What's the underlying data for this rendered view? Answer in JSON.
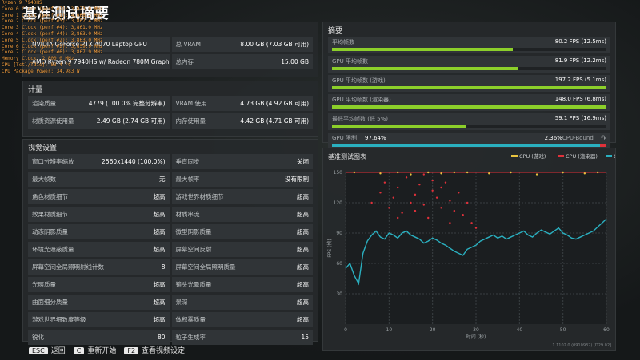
{
  "title": "基准测试摘要",
  "osd": [
    "Ryzen 9 7940HS",
    "Core 0 Clock (perf #7): 3,873.0 MHz",
    "Core 1 Clock (perf #1): 4,066.2 MHz",
    "Core 2 Clock (perf #3): 3,867.4 MHz",
    "Core 3 Clock (perf #4): 3,861.0 MHz",
    "Core 4 Clock (perf #4): 3,863.0 MHz",
    "Core 5 Clock (perf #2): 3,863.0 MHz",
    "Core 6 Clock (perf #2): 3,859.9 MHz",
    "Core 7 Clock (perf #6): 3,867.9 MHz",
    "Memory Clock: 2,800.0 MHz",
    "CPU [Tctl/Tdie]: 83.4 °C",
    "CPU Package Power: 34.983 W"
  ],
  "system": {
    "rows": [
      [
        "NVIDIA GeForce RTX 4070 Laptop GPU",
        "总 VRAM",
        "8.00 GB (7.03 GB 可用)"
      ],
      [
        "AMD Ryzen 9 7940HS w/ Radeon 780M Graphics",
        "总内存",
        "15.00 GB"
      ]
    ]
  },
  "metrics": {
    "title": "计量",
    "rows": [
      [
        "渲染质量",
        "4779 (100.0% 完整分辨率)",
        "VRAM 使用",
        "4.73 GB (4.92 GB 可用)"
      ],
      [
        "材质资源使用量",
        "2.49 GB (2.74 GB 可用)",
        "内存使用量",
        "4.42 GB (4.71 GB 可用)"
      ]
    ]
  },
  "settings": {
    "title": "视觉设置",
    "rows": [
      [
        "窗口分辨率缩放",
        "2560x1440 (100.0%)",
        "垂直同步",
        "关闭"
      ],
      [
        "最大帧数",
        "无",
        "最大帧率",
        "没有限制"
      ],
      [
        "角色材质细节",
        "超高",
        "游戏世界材质细节",
        "超高"
      ],
      [
        "效果材质细节",
        "超高",
        "材质串流",
        "超高"
      ],
      [
        "动态阴影质量",
        "超高",
        "微型阴影质量",
        "超高"
      ],
      [
        "环境光遮蔽质量",
        "超高",
        "屏幕空间反射",
        "超高"
      ],
      [
        "屏幕空间全局照明射线计数",
        "8",
        "屏幕空间全局照明质量",
        "超高"
      ],
      [
        "光照质量",
        "超高",
        "镜头光晕质量",
        "超高"
      ],
      [
        "曲面细分质量",
        "超高",
        "景深",
        "超高"
      ],
      [
        "游戏世界细致度等级",
        "超高",
        "体积雾质量",
        "超高"
      ],
      [
        "锐化",
        "80",
        "粒子生成率",
        "15"
      ]
    ]
  },
  "summary": {
    "title": "摘要",
    "rows": [
      [
        "平均帧数",
        "80.2 FPS (12.5ms)"
      ],
      [
        "GPU 平均帧数",
        "81.9 FPS (12.2ms)"
      ],
      [
        "GPU 平均帧数 (游戏)",
        "197.2 FPS (5.1ms)"
      ],
      [
        "GPU 平均帧数 (渲染器)",
        "148.0 FPS (6.8ms)"
      ],
      [
        "最低平均帧数 (低 5%)",
        "59.1 FPS (16.9ms)"
      ]
    ],
    "gpu_limit": {
      "label": "GPU 限制",
      "value": 97.64,
      "value_label": "97.64%",
      "cpu_value": 2.36,
      "cpu_value_label": "2.36%",
      "cpu_text": "CPU-Bound 工作"
    }
  },
  "chart_data": {
    "type": "scatter",
    "title": "基准测试图表",
    "ylabel": "FPS (帧)",
    "xlabel": "时间 (秒)",
    "xlim": [
      0,
      60
    ],
    "ylim": [
      0,
      150
    ],
    "xticks": [
      0,
      10,
      20,
      30,
      40,
      50,
      60
    ],
    "yticks": [
      30,
      60,
      90,
      120,
      150
    ],
    "grid": true,
    "cap_color": "#e0313a",
    "series": [
      {
        "name": "CPU (游戏)",
        "color": "#e8c440",
        "mode": "points",
        "x": [
          2,
          8,
          12,
          15,
          19,
          22,
          25,
          28,
          33,
          38,
          44,
          50,
          55,
          58
        ],
        "values": [
          150,
          149,
          150,
          148,
          150,
          149,
          150,
          150,
          149,
          150,
          148,
          150,
          149,
          150
        ]
      },
      {
        "name": "CPU (渲染器)",
        "color": "#e0313a",
        "mode": "points",
        "x": [
          6,
          8,
          9,
          10,
          11,
          12,
          13,
          14,
          15,
          16,
          17,
          18,
          19,
          20,
          21,
          22,
          23,
          24,
          25,
          26,
          27,
          28,
          29,
          30,
          18,
          20,
          22,
          24,
          16,
          12
        ],
        "values": [
          120,
          130,
          140,
          115,
          125,
          135,
          110,
          145,
          120,
          128,
          138,
          118,
          105,
          132,
          125,
          115,
          140,
          122,
          112,
          130,
          108,
          120,
          100,
          95,
          148,
          142,
          135,
          100,
          112,
          105
        ]
      },
      {
        "name": "GPU",
        "color": "#2ab0c0",
        "mode": "line",
        "x": [
          0,
          1,
          2,
          3,
          4,
          5,
          6,
          7,
          8,
          9,
          10,
          11,
          12,
          13,
          14,
          15,
          16,
          17,
          18,
          19,
          20,
          21,
          22,
          23,
          24,
          25,
          26,
          27,
          28,
          29,
          30,
          31,
          32,
          33,
          34,
          35,
          36,
          37,
          38,
          39,
          40,
          41,
          42,
          43,
          44,
          45,
          46,
          47,
          48,
          49,
          50,
          51,
          52,
          53,
          54,
          55,
          56,
          57,
          58,
          59,
          60
        ],
        "values": [
          55,
          60,
          48,
          40,
          70,
          82,
          88,
          92,
          86,
          84,
          90,
          88,
          85,
          90,
          92,
          88,
          86,
          84,
          80,
          82,
          85,
          83,
          80,
          78,
          75,
          72,
          70,
          68,
          74,
          76,
          78,
          82,
          84,
          86,
          88,
          85,
          87,
          84,
          86,
          88,
          90,
          92,
          88,
          86,
          90,
          93,
          91,
          89,
          92,
          95,
          90,
          88,
          85,
          84,
          86,
          88,
          90,
          92,
          96,
          100,
          104
        ]
      }
    ],
    "version": "1.1102.0 (0910932) [D29.02]"
  },
  "keys": [
    {
      "key": "ESC",
      "label": "返回"
    },
    {
      "key": "C",
      "label": "重新开始"
    },
    {
      "key": "F2",
      "label": "查看视频设定"
    }
  ]
}
